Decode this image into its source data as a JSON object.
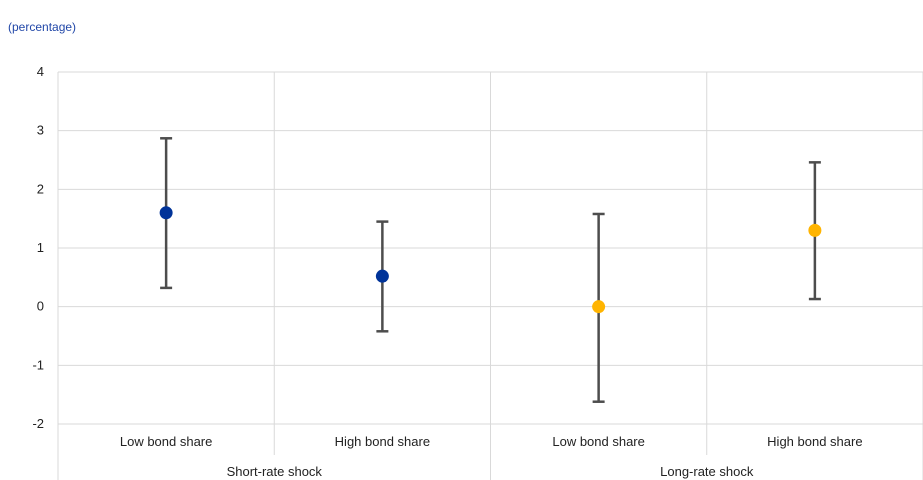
{
  "chart_data": {
    "type": "scatter",
    "subtitle": "(percentage)",
    "ylim": [
      -2,
      4
    ],
    "yticks": [
      "4",
      "3",
      "2",
      "1",
      "0",
      "-1",
      "-2"
    ],
    "ytick_values": [
      4,
      3,
      2,
      1,
      0,
      -1,
      -2
    ],
    "categories": [
      "Low bond share",
      "High bond share",
      "Low bond share",
      "High bond share"
    ],
    "groups": [
      "Short-rate shock",
      "Long-rate shock"
    ],
    "grid": true,
    "legend": "none",
    "error_bar_color": "#4d4d4d",
    "points": [
      {
        "category": "Low bond share",
        "group": "Short-rate shock",
        "value": 1.6,
        "lower": 0.32,
        "upper": 2.87,
        "color": "#003399"
      },
      {
        "category": "High bond share",
        "group": "Short-rate shock",
        "value": 0.52,
        "lower": -0.42,
        "upper": 1.45,
        "color": "#003399"
      },
      {
        "category": "Low bond share",
        "group": "Long-rate shock",
        "value": 0.0,
        "lower": -1.62,
        "upper": 1.58,
        "color": "#ffb400"
      },
      {
        "category": "High bond share",
        "group": "Long-rate shock",
        "value": 1.3,
        "lower": 0.13,
        "upper": 2.46,
        "color": "#ffb400"
      }
    ]
  }
}
